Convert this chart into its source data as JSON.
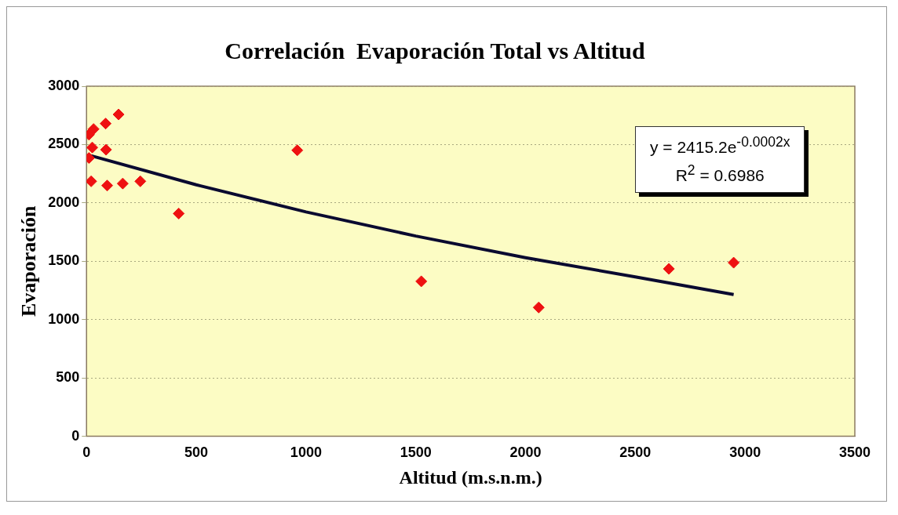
{
  "chart_data": {
    "type": "scatter",
    "title": "Correlación  Evaporación Total vs Altitud",
    "xlabel": "Altitud (m.s.n.m.)",
    "ylabel": "Evaporación",
    "annotations": [
      "y = 2415.2e$^{-0.0002x}$",
      "R$^{2}$ = 0.6986"
    ],
    "series": [
      {
        "type": "scatter",
        "color": "#ee1111",
        "marker": "diamond",
        "x": [
          11,
          32,
          87,
          146,
          26,
          89,
          11,
          21,
          94,
          165,
          245,
          420,
          960,
          1525,
          2060,
          2653,
          2948
        ],
        "values": [
          2585,
          2633,
          2680,
          2758,
          2475,
          2456,
          2385,
          2185,
          2149,
          2166,
          2185,
          1909,
          2451,
          1328,
          1104,
          1435,
          1488
        ]
      },
      {
        "type": "line",
        "color": "#0a0a30",
        "marker": "none",
        "x": [
          20,
          500,
          1000,
          1500,
          2000,
          2500,
          2948
        ],
        "values": [
          2405,
          2155,
          1923,
          1716,
          1531,
          1366,
          1215
        ]
      }
    ],
    "xlim": [
      0,
      3500
    ],
    "xticks": [
      0,
      500,
      1000,
      1500,
      2000,
      2500,
      3000,
      3500
    ],
    "ylim": [
      0,
      3000
    ],
    "yticks": [
      0,
      500,
      1000,
      1500,
      2000,
      2500,
      3000
    ],
    "grid": "y",
    "legend": false
  }
}
